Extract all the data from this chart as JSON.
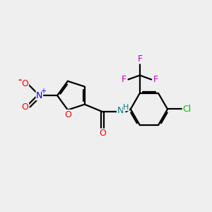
{
  "background_color": "#efefef",
  "bond_color": "#000000",
  "atom_colors": {
    "O": "#ff0000",
    "N": "#0000ff",
    "N_amide": "#008080",
    "Cl": "#00bb00",
    "F": "#cc00cc",
    "H": "#008080",
    "C": "#000000"
  },
  "figsize": [
    3.0,
    3.0
  ],
  "dpi": 100
}
